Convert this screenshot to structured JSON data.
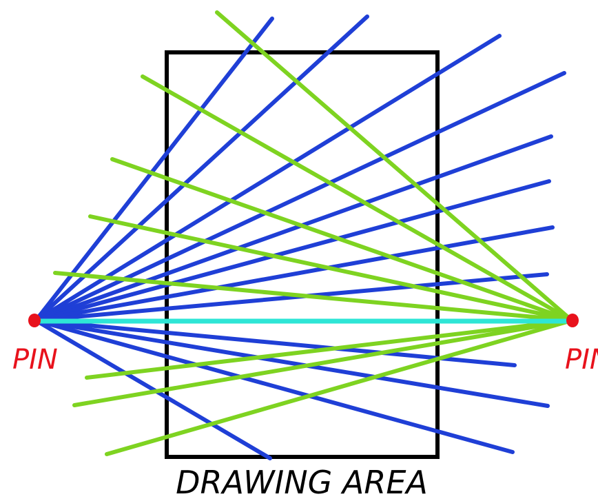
{
  "colors": {
    "blue": "#1f3fd6",
    "green": "#7ed321",
    "cyan": "#2ee6d6",
    "pin": "#e8121c",
    "frame": "#000000"
  },
  "labels": {
    "left_pin": "PIN",
    "right_pin": "PIN",
    "area": "DRAWING AREA"
  }
}
